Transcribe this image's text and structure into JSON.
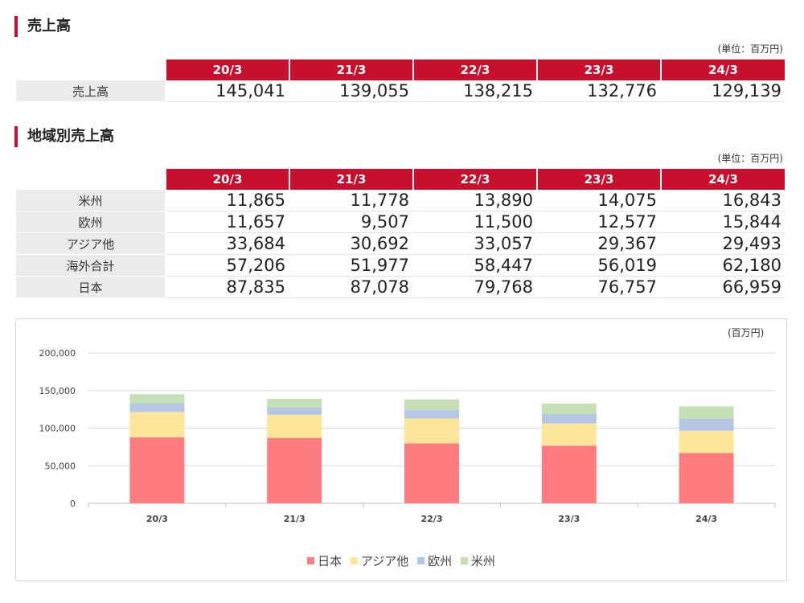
{
  "sales": {
    "title": "売上高",
    "unit": "(単位：百万円)",
    "headers": [
      "20/3",
      "21/3",
      "22/3",
      "23/3",
      "24/3"
    ],
    "rows": [
      {
        "label": "売上高",
        "values": [
          "145,041",
          "139,055",
          "138,215",
          "132,776",
          "129,139"
        ]
      }
    ]
  },
  "regional": {
    "title": "地域別売上高",
    "unit": "(単位：百万円)",
    "headers": [
      "20/3",
      "21/3",
      "22/3",
      "23/3",
      "24/3"
    ],
    "rows": [
      {
        "label": "米州",
        "values": [
          "11,865",
          "11,778",
          "13,890",
          "14,075",
          "16,843"
        ]
      },
      {
        "label": "欧州",
        "values": [
          "11,657",
          "9,507",
          "11,500",
          "12,577",
          "15,844"
        ]
      },
      {
        "label": "アジア他",
        "values": [
          "33,684",
          "30,692",
          "33,057",
          "29,367",
          "29,493"
        ]
      },
      {
        "label": "海外合計",
        "values": [
          "57,206",
          "51,977",
          "58,447",
          "56,019",
          "62,180"
        ]
      },
      {
        "label": "日本",
        "values": [
          "87,835",
          "87,078",
          "79,768",
          "76,757",
          "66,959"
        ]
      }
    ]
  },
  "chart_unit": "(百万円)",
  "chart_data": {
    "type": "bar",
    "stacked": true,
    "categories": [
      "20/3",
      "21/3",
      "22/3",
      "23/3",
      "24/3"
    ],
    "series": [
      {
        "name": "日本",
        "values": [
          87835,
          87078,
          79768,
          76757,
          66959
        ],
        "color": "#ff7c80"
      },
      {
        "name": "アジア他",
        "values": [
          33684,
          30692,
          33057,
          29367,
          29493
        ],
        "color": "#ffe699"
      },
      {
        "name": "欧州",
        "values": [
          11657,
          9507,
          11500,
          12577,
          15844
        ],
        "color": "#b4c7e7"
      },
      {
        "name": "米州",
        "values": [
          11865,
          11778,
          13890,
          14075,
          16843
        ],
        "color": "#c5e0b4"
      }
    ],
    "yticks": [
      "0",
      "50,000",
      "100,000",
      "150,000",
      "200,000"
    ],
    "ylim": [
      0,
      200000
    ],
    "grid": true,
    "legend": "bottom"
  }
}
